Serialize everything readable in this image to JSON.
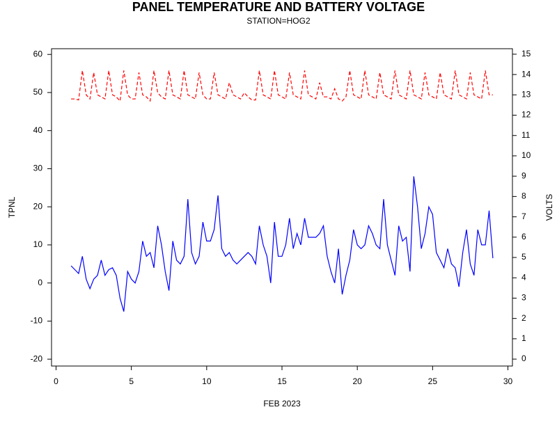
{
  "chart_data": {
    "type": "line",
    "title": "PANEL TEMPERATURE AND BATTERY VOLTAGE",
    "subtitle": "STATION=HOG2",
    "xlabel": "FEB 2023",
    "ylabel": "TPNL",
    "y2label": "VOLTS",
    "xlim": [
      -0.3,
      30.3
    ],
    "ylim": [
      -21.8,
      61.5
    ],
    "y2lim": [
      -0.34,
      15.27
    ],
    "xticks": [
      0,
      5,
      10,
      15,
      20,
      25,
      30
    ],
    "yticks": [
      -20,
      -10,
      0,
      10,
      20,
      30,
      40,
      50,
      60
    ],
    "y2ticks": [
      0,
      1,
      2,
      3,
      4,
      5,
      6,
      7,
      8,
      9,
      10,
      11,
      12,
      13,
      14,
      15
    ],
    "x": [
      1,
      1.25,
      1.5,
      1.75,
      2,
      2.25,
      2.5,
      2.75,
      3,
      3.25,
      3.5,
      3.75,
      4,
      4.25,
      4.5,
      4.75,
      5,
      5.25,
      5.5,
      5.75,
      6,
      6.25,
      6.5,
      6.75,
      7,
      7.25,
      7.5,
      7.75,
      8,
      8.25,
      8.5,
      8.75,
      9,
      9.25,
      9.5,
      9.75,
      10,
      10.25,
      10.5,
      10.75,
      11,
      11.25,
      11.5,
      11.75,
      12,
      12.25,
      12.5,
      12.75,
      13,
      13.25,
      13.5,
      13.75,
      14,
      14.25,
      14.5,
      14.75,
      15,
      15.25,
      15.5,
      15.75,
      16,
      16.25,
      16.5,
      16.75,
      17,
      17.25,
      17.5,
      17.75,
      18,
      18.25,
      18.5,
      18.75,
      19,
      19.25,
      19.5,
      19.75,
      20,
      20.25,
      20.5,
      20.75,
      21,
      21.25,
      21.5,
      21.75,
      22,
      22.25,
      22.5,
      22.75,
      23,
      23.25,
      23.5,
      23.75,
      24,
      24.25,
      24.5,
      24.75,
      25,
      25.25,
      25.5,
      25.75,
      26,
      26.25,
      26.5,
      26.75,
      27,
      27.25,
      27.5,
      27.75,
      28,
      28.25,
      28.5,
      28.75,
      29
    ],
    "series": [
      {
        "color": "#0000ff",
        "axis": "y",
        "dash": false,
        "values": [
          4.5,
          3.5,
          2.5,
          7,
          1,
          -1.5,
          1,
          2,
          6,
          2,
          3.5,
          4,
          2,
          -4,
          -7.5,
          3,
          1,
          0,
          3,
          11,
          7,
          8,
          4,
          15,
          10,
          3,
          -2,
          11,
          6,
          5,
          7,
          22,
          8,
          5,
          7,
          16,
          11,
          11,
          14,
          23,
          9,
          7,
          8,
          6,
          5,
          6,
          7,
          8,
          7,
          5,
          15,
          10,
          7,
          0,
          16,
          7,
          7,
          10,
          17,
          9,
          13,
          10,
          17,
          12,
          12,
          12,
          13,
          15,
          7,
          3,
          0,
          9,
          -3,
          2,
          6,
          14,
          10,
          9,
          10,
          15,
          13,
          10,
          9,
          22,
          10,
          6,
          2,
          15,
          11,
          12,
          3,
          28,
          20,
          9,
          13,
          20,
          18,
          8,
          6,
          4,
          9,
          5,
          4,
          -1,
          8,
          14,
          5,
          2,
          14,
          10,
          10,
          19,
          6.5
        ]
      },
      {
        "color": "#ff0000",
        "axis": "y2",
        "dash": true,
        "values": [
          12.8,
          12.8,
          12.75,
          14.2,
          13.0,
          12.8,
          14.1,
          13.0,
          12.9,
          12.8,
          14.2,
          13.0,
          12.9,
          12.7,
          14.2,
          13.0,
          12.8,
          12.8,
          14.1,
          13.0,
          12.9,
          12.7,
          14.2,
          13.1,
          12.9,
          12.8,
          14.2,
          13.0,
          12.9,
          12.8,
          14.2,
          13.0,
          12.9,
          12.8,
          14.1,
          13.0,
          12.8,
          12.8,
          14.1,
          13.0,
          12.9,
          12.8,
          13.6,
          13.0,
          12.9,
          12.8,
          13.1,
          12.9,
          12.75,
          12.75,
          14.2,
          13.0,
          12.9,
          12.8,
          14.2,
          13.0,
          12.9,
          12.8,
          14.1,
          13.0,
          12.9,
          12.8,
          14.2,
          13.0,
          12.9,
          12.8,
          13.6,
          12.9,
          12.9,
          12.8,
          13.3,
          12.8,
          12.7,
          12.9,
          14.2,
          13.0,
          12.9,
          12.8,
          14.2,
          13.0,
          12.9,
          12.8,
          14.1,
          13.0,
          12.9,
          12.8,
          14.2,
          13.0,
          12.9,
          12.8,
          14.2,
          13.0,
          12.9,
          12.8,
          14.1,
          13.0,
          12.9,
          12.8,
          14.1,
          13.0,
          12.9,
          12.8,
          14.2,
          13.0,
          12.9,
          12.8,
          14.1,
          13.0,
          12.9,
          12.8,
          14.2,
          13.0,
          13.0
        ]
      }
    ]
  }
}
